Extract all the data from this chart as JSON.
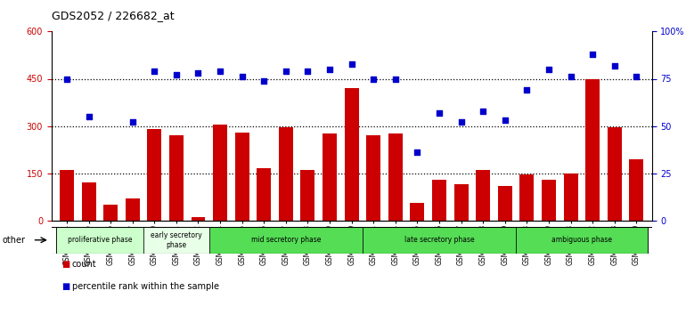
{
  "title": "GDS2052 / 226682_at",
  "categories": [
    "GSM109814",
    "GSM109815",
    "GSM109816",
    "GSM109817",
    "GSM109820",
    "GSM109821",
    "GSM109822",
    "GSM109824",
    "GSM109825",
    "GSM109826",
    "GSM109827",
    "GSM109828",
    "GSM109829",
    "GSM109830",
    "GSM109831",
    "GSM109834",
    "GSM109835",
    "GSM109836",
    "GSM109837",
    "GSM109838",
    "GSM109839",
    "GSM109818",
    "GSM109819",
    "GSM109823",
    "GSM109832",
    "GSM109833",
    "GSM109840"
  ],
  "bar_values": [
    160,
    120,
    50,
    70,
    290,
    270,
    10,
    305,
    280,
    165,
    295,
    160,
    275,
    420,
    270,
    275,
    55,
    130,
    115,
    160,
    110,
    145,
    130,
    150,
    450,
    295,
    195
  ],
  "dot_values": [
    75,
    55,
    null,
    52,
    79,
    77,
    78,
    79,
    76,
    74,
    79,
    79,
    80,
    83,
    75,
    75,
    36,
    57,
    52,
    58,
    53,
    69,
    80,
    76,
    88,
    82,
    76
  ],
  "phases": [
    {
      "label": "proliferative phase",
      "start": 0,
      "end": 4,
      "color": "#ccffcc"
    },
    {
      "label": "early secretory\nphase",
      "start": 4,
      "end": 7,
      "color": "#e8ffe8"
    },
    {
      "label": "mid secretory phase",
      "start": 7,
      "end": 14,
      "color": "#55dd55"
    },
    {
      "label": "late secretory phase",
      "start": 14,
      "end": 21,
      "color": "#55dd55"
    },
    {
      "label": "ambiguous phase",
      "start": 21,
      "end": 27,
      "color": "#55dd55"
    }
  ],
  "bar_color": "#cc0000",
  "dot_color": "#0000cc",
  "ylim_left": [
    0,
    600
  ],
  "ylim_right": [
    0,
    100
  ],
  "yticks_left": [
    0,
    150,
    300,
    450,
    600
  ],
  "yticks_right": [
    0,
    25,
    50,
    75,
    100
  ],
  "ytick_labels_right": [
    "0",
    "25",
    "50",
    "75",
    "100%"
  ],
  "hlines": [
    150,
    300,
    450
  ],
  "background_color": "#ffffff",
  "plot_bg_color": "#ffffff"
}
